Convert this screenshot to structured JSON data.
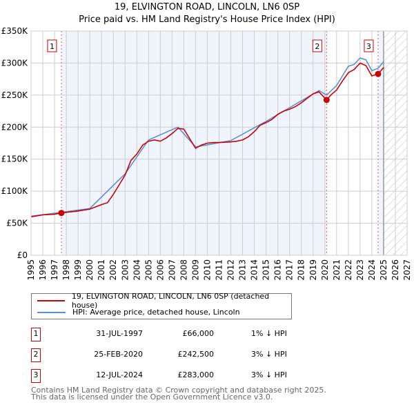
{
  "title": "19, ELVINGTON ROAD, LINCOLN, LN6 0SP",
  "subtitle": "Price paid vs. HM Land Registry's House Price Index (HPI)",
  "chart_data": {
    "type": "line",
    "xlim": [
      1995,
      2027
    ],
    "ylim": [
      0,
      350000
    ],
    "x_ticks": [
      "1995",
      "1996",
      "1997",
      "1998",
      "1999",
      "2000",
      "2001",
      "2002",
      "2003",
      "2004",
      "2005",
      "2006",
      "2007",
      "2008",
      "2009",
      "2010",
      "2011",
      "2012",
      "2013",
      "2014",
      "2015",
      "2016",
      "2017",
      "2018",
      "2019",
      "2020",
      "2021",
      "2022",
      "2023",
      "2024",
      "2025",
      "2026",
      "2027"
    ],
    "y_ticks": [
      {
        "v": 0,
        "label": "£0"
      },
      {
        "v": 50000,
        "label": "£50K"
      },
      {
        "v": 100000,
        "label": "£100K"
      },
      {
        "v": 150000,
        "label": "£150K"
      },
      {
        "v": 200000,
        "label": "£200K"
      },
      {
        "v": 250000,
        "label": "£250K"
      },
      {
        "v": 300000,
        "label": "£300K"
      },
      {
        "v": 350000,
        "label": "£350K"
      }
    ],
    "grid": true,
    "series": [
      {
        "name": "19, ELVINGTON ROAD, LINCOLN, LN6 0SP (detached house)",
        "color": "#cc0000",
        "x": [
          1995,
          1996,
          1997,
          1997.58,
          1998,
          1999,
          2000,
          2001,
          2001.5,
          2002,
          2002.5,
          2003,
          2003.5,
          2004,
          2004.5,
          2005,
          2005.5,
          2006,
          2006.5,
          2007,
          2007.5,
          2008,
          2008.5,
          2009,
          2009.5,
          2010,
          2010.5,
          2011,
          2012,
          2012.5,
          2013,
          2013.5,
          2014,
          2014.5,
          2015,
          2015.5,
          2016,
          2016.5,
          2017,
          2017.5,
          2018,
          2018.5,
          2019,
          2019.5,
          2020.15,
          2020.5,
          2021,
          2021.5,
          2022,
          2022.5,
          2023,
          2023.5,
          2024,
          2024.53,
          2025
        ],
        "y": [
          60000,
          63000,
          64000,
          66000,
          67000,
          69000,
          72000,
          79000,
          82000,
          95000,
          110000,
          125000,
          148000,
          158000,
          172000,
          178000,
          180000,
          178000,
          183000,
          190000,
          198000,
          197000,
          182000,
          167000,
          172000,
          175000,
          176000,
          176000,
          177000,
          178000,
          180000,
          185000,
          193000,
          203000,
          207000,
          212000,
          220000,
          225000,
          228000,
          232000,
          238000,
          245000,
          252000,
          255000,
          242500,
          250000,
          258000,
          272000,
          285000,
          290000,
          300000,
          296000,
          280000,
          283000,
          293000
        ]
      },
      {
        "name": "HPI: Average price, detached house, Lincoln",
        "color": "#5b8fd4",
        "x": [
          1995,
          1997.58,
          2000,
          2003,
          2005,
          2007.5,
          2009,
          2012,
          2015,
          2018,
          2019.5,
          2020.15,
          2021,
          2021.5,
          2022,
          2022.5,
          2023,
          2023.5,
          2024,
          2024.53,
          2025
        ],
        "y": [
          61000,
          67000,
          73000,
          127000,
          180000,
          200000,
          169000,
          179000,
          209000,
          241000,
          257000,
          250000,
          265000,
          280000,
          295000,
          298000,
          308000,
          305000,
          288000,
          292000,
          302000
        ]
      }
    ],
    "sales": [
      {
        "n": "1",
        "x": 1997.58,
        "y": 66000,
        "date": "31-JUL-1997",
        "price": "£66,000",
        "hpi": "1% ↓ HPI"
      },
      {
        "n": "2",
        "x": 2020.15,
        "y": 242500,
        "date": "25-FEB-2020",
        "price": "£242,500",
        "hpi": "3% ↓ HPI"
      },
      {
        "n": "3",
        "x": 2024.53,
        "y": 283000,
        "date": "12-JUL-2024",
        "price": "£283,000",
        "hpi": "3% ↓ HPI"
      }
    ],
    "shaded_ranges": [
      [
        1997.58,
        2020.15
      ],
      [
        2024.53,
        2025
      ]
    ],
    "hatched_from": 2025,
    "legend_placement": "below"
  },
  "footer": [
    "Contains HM Land Registry data © Crown copyright and database right 2025.",
    "This data is licensed under the Open Government Licence v3.0."
  ]
}
